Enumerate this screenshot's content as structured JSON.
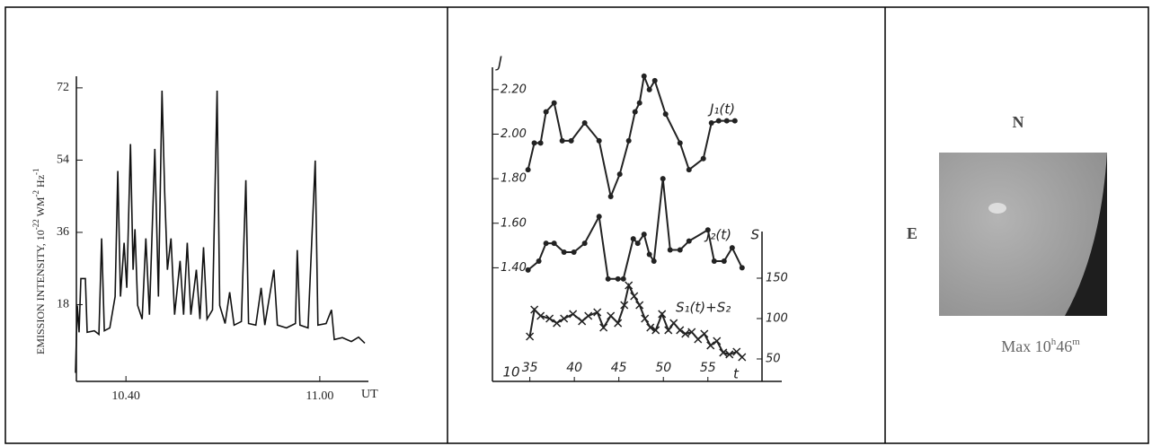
{
  "chart_data": [
    {
      "type": "line",
      "y_label_parts": [
        "EMISSION INTENSITY, 10",
        "-22",
        " WM",
        "-2",
        " Hz",
        "-1"
      ],
      "x_label": "UT",
      "x": [
        34.79,
        34.98,
        35.16,
        35.35,
        35.81,
        36.0,
        36.74,
        37.21,
        37.49,
        37.77,
        38.33,
        38.88,
        39.16,
        39.44,
        39.81,
        40.09,
        40.47,
        40.74,
        40.93,
        41.21,
        41.67,
        42.05,
        42.42,
        42.98,
        43.35,
        43.72,
        44.0,
        44.28,
        44.65,
        45.02,
        45.58,
        45.95,
        46.33,
        46.7,
        47.26,
        47.63,
        48.0,
        48.37,
        48.93,
        49.4,
        49.67,
        50.23,
        50.7,
        51.16,
        51.91,
        52.37,
        52.65,
        53.4,
        53.95,
        54.33,
        55.26,
        55.63,
        56.56,
        57.49,
        57.67,
        57.95,
        58.79,
        59.53,
        59.81,
        60.65,
        61.21,
        61.49,
        62.33,
        63.26,
        64.0,
        64.65
      ],
      "values": [
        1,
        17.8,
        11.1,
        24.5,
        24.5,
        11.1,
        11.5,
        10.6,
        34.5,
        11.5,
        12.2,
        20,
        51.3,
        20,
        33.4,
        22.2,
        58,
        26.7,
        36.8,
        17.8,
        14.4,
        34.5,
        15.5,
        56.8,
        20,
        71.3,
        45.7,
        26.7,
        34.5,
        15.5,
        28.9,
        15.5,
        33.4,
        15.5,
        26.7,
        14.4,
        32.3,
        14.4,
        16.7,
        71.3,
        17.8,
        13.3,
        21.1,
        12.9,
        13.8,
        49,
        13.3,
        12.9,
        22.2,
        12.9,
        26.7,
        12.9,
        12.2,
        13.3,
        31.6,
        12.9,
        12.2,
        53.9,
        12.9,
        13.3,
        16.7,
        9.3,
        9.8,
        8.8,
        9.9,
        8.4
      ],
      "color": "#111111",
      "xlim": [
        34.7,
        66
      ],
      "ylim": [
        0,
        76
      ],
      "xticks": [
        {
          "value": 40,
          "label": "10.40"
        },
        {
          "value": 60,
          "label": "11.00"
        }
      ],
      "yticks": [
        18,
        36,
        54,
        72
      ]
    },
    {
      "type": "line",
      "y_label": "J",
      "y2_label": "S",
      "x_label": "t",
      "xtick_prefix": "10",
      "xlim": [
        30.8,
        63.3
      ],
      "ylim": [
        0.89,
        2.3
      ],
      "y2lim": [
        22.2,
        207.8
      ],
      "xticks": [
        35,
        40,
        45,
        50,
        55
      ],
      "yticks": [
        {
          "value": 1.4,
          "label": "1.40"
        },
        {
          "value": 1.6,
          "label": "1.60"
        },
        {
          "value": 1.8,
          "label": "1.80"
        },
        {
          "value": 2.0,
          "label": "2.00"
        },
        {
          "value": 2.2,
          "label": "2.20"
        }
      ],
      "y2ticks": [
        50,
        100,
        150
      ],
      "series": [
        {
          "name": "J₁(t)",
          "color": "#222222",
          "marker": "dot",
          "x": [
            34.8,
            35.5,
            36.21,
            36.82,
            37.73,
            38.64,
            39.65,
            41.16,
            42.78,
            44.09,
            45.1,
            46.11,
            46.82,
            47.32,
            47.83,
            48.43,
            49.04,
            50.25,
            51.87,
            52.88,
            54.49,
            55.4,
            56.21,
            57.12,
            58.03
          ],
          "values": [
            1.84,
            1.96,
            1.96,
            2.1,
            2.14,
            1.97,
            1.97,
            2.05,
            1.97,
            1.72,
            1.82,
            1.97,
            2.1,
            2.14,
            2.26,
            2.2,
            2.24,
            2.09,
            1.96,
            1.84,
            1.89,
            2.05,
            2.06,
            2.06,
            2.06
          ]
        },
        {
          "name": "J₂(t)",
          "color": "#222222",
          "marker": "dot",
          "x": [
            34.8,
            36.01,
            36.82,
            37.73,
            38.84,
            39.95,
            41.16,
            42.78,
            43.79,
            44.9,
            45.51,
            46.62,
            47.12,
            47.83,
            48.43,
            48.94,
            49.95,
            50.76,
            51.87,
            52.88,
            55.0,
            55.71,
            56.82,
            57.73,
            58.84
          ],
          "values": [
            1.39,
            1.43,
            1.51,
            1.51,
            1.47,
            1.47,
            1.51,
            1.63,
            1.35,
            1.35,
            1.35,
            1.53,
            1.51,
            1.55,
            1.46,
            1.43,
            1.8,
            1.48,
            1.48,
            1.52,
            1.57,
            1.43,
            1.43,
            1.49,
            1.4
          ]
        },
        {
          "name": "S₁(t)+S₂",
          "color": "#222222",
          "marker": "x",
          "axis": "y2",
          "x": [
            35,
            35.51,
            36.21,
            37.22,
            38.03,
            38.84,
            39.85,
            40.86,
            41.57,
            42.58,
            43.28,
            44.09,
            44.9,
            45.61,
            46.11,
            46.72,
            47.32,
            47.93,
            48.54,
            49.14,
            49.85,
            50.56,
            51.16,
            51.87,
            52.47,
            53.18,
            53.89,
            54.6,
            55.3,
            56.01,
            56.72,
            57.42,
            58.23,
            58.84
          ],
          "values": [
            77.8,
            111.1,
            103.3,
            100,
            94.4,
            100,
            105.6,
            96.7,
            103.3,
            107.8,
            88.9,
            103.3,
            94.4,
            116.7,
            141.1,
            127.8,
            116.7,
            100,
            88.9,
            85.6,
            105.6,
            85.6,
            94.4,
            85.6,
            81.1,
            83.3,
            74.4,
            81.1,
            66.7,
            72.2,
            57.8,
            55.6,
            58.9,
            52.2
          ]
        }
      ]
    }
  ],
  "image_panel": {
    "north": "N",
    "east": "E",
    "caption": [
      "Max 10",
      "h",
      "46",
      "m"
    ]
  }
}
